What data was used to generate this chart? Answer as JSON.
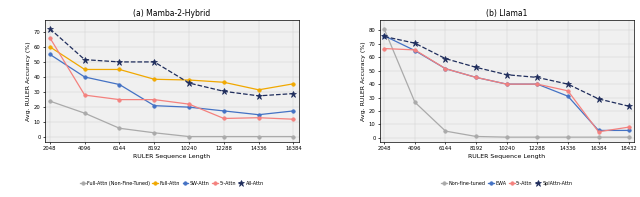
{
  "left": {
    "title": "(a) Mamba-2-Hybrid",
    "xlabel": "RULER Sequence Length",
    "ylabel": "Avg. RULER Accuracy (%)",
    "x": [
      2048,
      4096,
      6144,
      8192,
      10240,
      12288,
      14336,
      16384
    ],
    "series": [
      {
        "label": "Full-Attn (Non-Fine-Tuned)",
        "color": "#aaaaaa",
        "marker": "o",
        "markersize": 2.5,
        "linestyle": "-",
        "linewidth": 0.9,
        "values": [
          24.0,
          16.0,
          6.0,
          3.0,
          0.5,
          0.5,
          0.5,
          0.5
        ]
      },
      {
        "label": "Full-Attn",
        "color": "#f0a800",
        "marker": "o",
        "markersize": 2.5,
        "linestyle": "-",
        "linewidth": 0.9,
        "values": [
          60.0,
          45.0,
          45.0,
          38.5,
          38.0,
          36.5,
          31.5,
          35.5
        ]
      },
      {
        "label": "SW-Attn",
        "color": "#4472c4",
        "marker": "o",
        "markersize": 2.5,
        "linestyle": "-",
        "linewidth": 0.9,
        "values": [
          55.0,
          40.0,
          35.0,
          21.0,
          20.0,
          17.5,
          15.0,
          17.5
        ]
      },
      {
        "label": "5ᵗ-Attn",
        "color": "#f4817e",
        "marker": "o",
        "markersize": 2.5,
        "linestyle": "-",
        "linewidth": 0.9,
        "values": [
          66.0,
          28.0,
          25.0,
          25.0,
          22.0,
          12.5,
          13.0,
          12.0
        ]
      },
      {
        "label": "All-Attn",
        "color": "#1f2d5c",
        "marker": "*",
        "markersize": 4.5,
        "linestyle": "--",
        "linewidth": 0.9,
        "values": [
          72.0,
          51.5,
          50.0,
          50.0,
          36.0,
          30.5,
          27.5,
          29.0
        ]
      }
    ],
    "ylim": [
      -3,
      78
    ],
    "yticks": [
      0,
      10,
      20,
      30,
      40,
      50,
      60,
      70
    ]
  },
  "right": {
    "title": "(b) Llama1",
    "xlabel": "RULER Sequence Length",
    "ylabel": "Avg. RULER Accuracy (%)",
    "x": [
      2048,
      4096,
      6144,
      8192,
      10240,
      12288,
      14336,
      16384,
      18432
    ],
    "series": [
      {
        "label": "Non-fine-tuned",
        "color": "#aaaaaa",
        "marker": "o",
        "markersize": 2.5,
        "linestyle": "-",
        "linewidth": 0.9,
        "values": [
          81.0,
          26.5,
          5.0,
          1.0,
          0.5,
          0.5,
          0.5,
          0.5,
          0.5
        ]
      },
      {
        "label": "EWA",
        "color": "#4472c4",
        "marker": "o",
        "markersize": 2.5,
        "linestyle": "-",
        "linewidth": 0.9,
        "values": [
          76.0,
          65.0,
          51.5,
          45.0,
          40.0,
          40.0,
          31.0,
          5.5,
          5.5
        ]
      },
      {
        "label": "5ᵗ-Attn",
        "color": "#f4817e",
        "marker": "o",
        "markersize": 2.5,
        "linestyle": "-",
        "linewidth": 0.9,
        "values": [
          66.5,
          65.5,
          51.5,
          45.0,
          40.0,
          40.0,
          35.0,
          4.5,
          8.0
        ]
      },
      {
        "label": "SplAttn-Attn",
        "color": "#1f2d5c",
        "marker": "*",
        "markersize": 4.5,
        "linestyle": "--",
        "linewidth": 0.9,
        "values": [
          75.5,
          70.5,
          59.0,
          52.5,
          47.0,
          45.0,
          40.0,
          29.0,
          23.5
        ]
      }
    ],
    "ylim": [
      -3,
      88
    ],
    "yticks": [
      0,
      10,
      20,
      30,
      40,
      50,
      60,
      70,
      80
    ]
  },
  "fig_width": 6.4,
  "fig_height": 1.97,
  "dpi": 100,
  "background_color": "#f0f0f0"
}
